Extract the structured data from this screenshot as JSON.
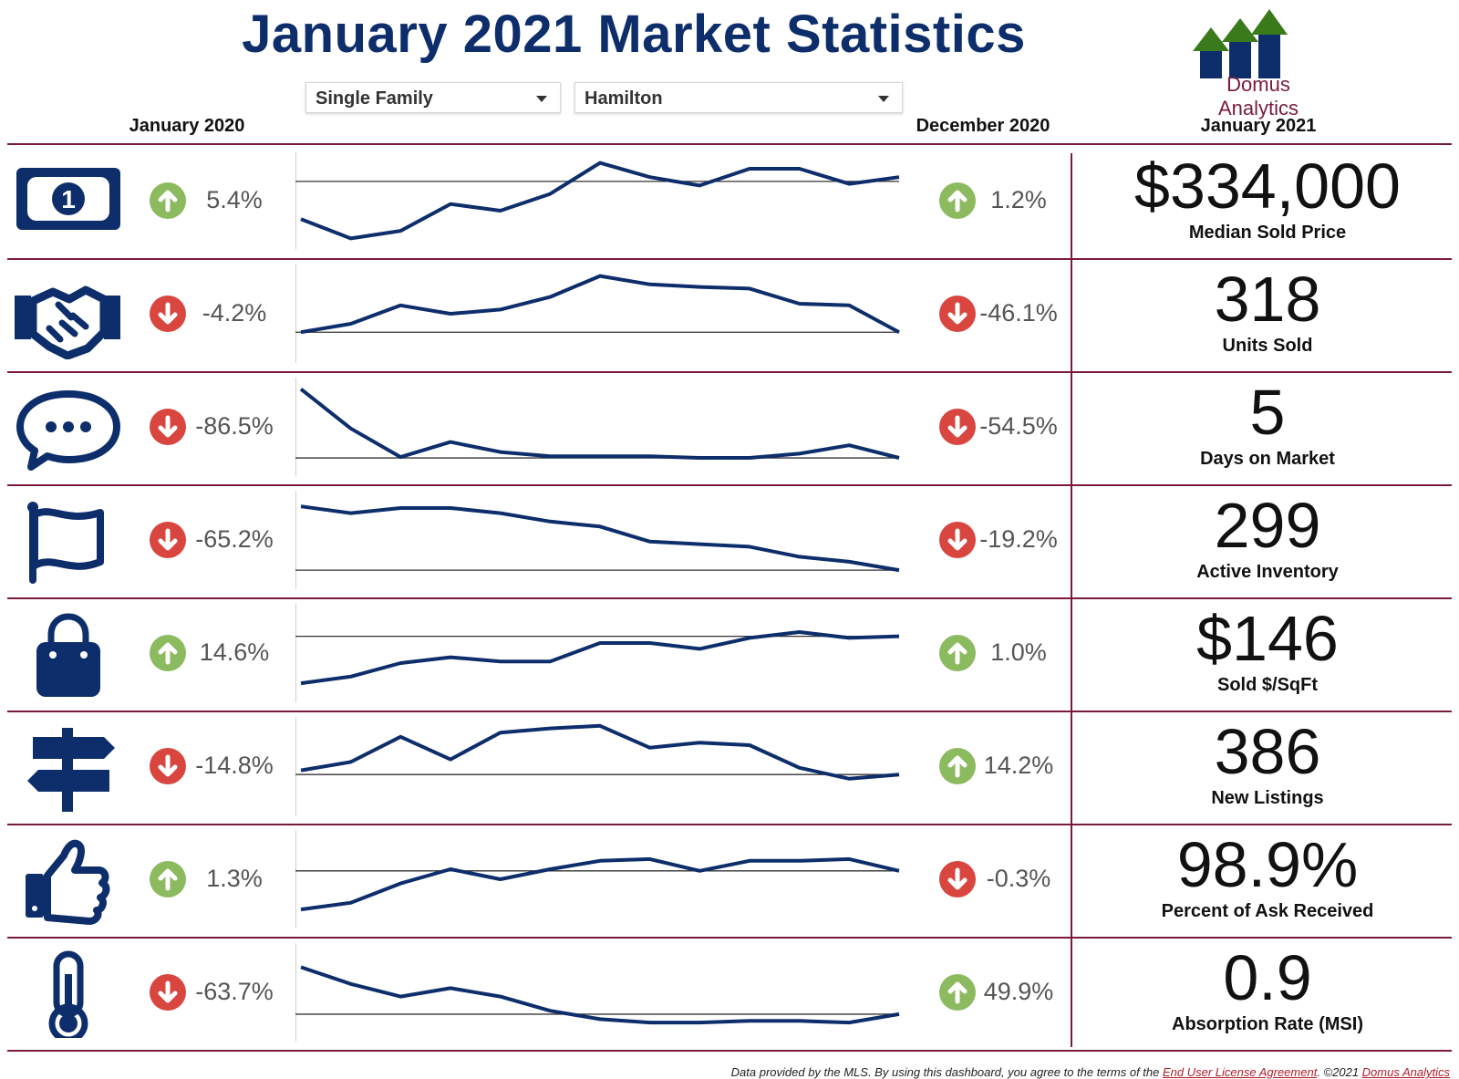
{
  "title": "January 2021 Market Statistics",
  "logo_text": "Domus Analytics",
  "filters": {
    "property_type": "Single Family",
    "region": "Hamilton"
  },
  "headers": {
    "left": "January 2020",
    "middle": "December 2020",
    "right": "January 2021"
  },
  "colors": {
    "navy": "#0d2e6b",
    "up": "#8cba5e",
    "down": "#d9463f",
    "divider": "#7a1a3a"
  },
  "rows": [
    {
      "icon": "dollar-bill-icon",
      "yoy": "5.4%",
      "yoy_dir": "up",
      "mom": "1.2%",
      "mom_dir": "up",
      "value": "$334,000",
      "label": "Median Sold Price",
      "spark": [
        0.72,
        0.95,
        0.86,
        0.54,
        0.62,
        0.42,
        0.05,
        0.22,
        0.32,
        0.12,
        0.12,
        0.3,
        0.22
      ],
      "ref": 0.27
    },
    {
      "icon": "handshake-icon",
      "yoy": "-4.2%",
      "yoy_dir": "down",
      "mom": "-46.1%",
      "mom_dir": "down",
      "value": "318",
      "label": "Units Sold",
      "spark": [
        0.72,
        0.62,
        0.4,
        0.5,
        0.45,
        0.3,
        0.05,
        0.15,
        0.18,
        0.2,
        0.38,
        0.4,
        0.72
      ],
      "ref": 0.72
    },
    {
      "icon": "chat-bubble-icon",
      "yoy": "-86.5%",
      "yoy_dir": "down",
      "mom": "-54.5%",
      "mom_dir": "down",
      "value": "5",
      "label": "Days on Market",
      "spark": [
        0.05,
        0.52,
        0.86,
        0.68,
        0.8,
        0.85,
        0.85,
        0.85,
        0.87,
        0.87,
        0.82,
        0.72,
        0.87
      ],
      "ref": 0.87
    },
    {
      "icon": "flag-icon",
      "yoy": "-65.2%",
      "yoy_dir": "down",
      "mom": "-19.2%",
      "mom_dir": "down",
      "value": "299",
      "label": "Active Inventory",
      "spark": [
        0.1,
        0.18,
        0.12,
        0.12,
        0.18,
        0.28,
        0.34,
        0.52,
        0.55,
        0.58,
        0.7,
        0.76,
        0.86
      ],
      "ref": 0.86
    },
    {
      "icon": "shopping-bag-icon",
      "yoy": "14.6%",
      "yoy_dir": "up",
      "mom": "1.0%",
      "mom_dir": "up",
      "value": "$146",
      "label": "Sold $/SqFt",
      "spark": [
        0.86,
        0.78,
        0.62,
        0.55,
        0.6,
        0.6,
        0.38,
        0.38,
        0.45,
        0.32,
        0.25,
        0.32,
        0.3
      ],
      "ref": 0.3
    },
    {
      "icon": "signpost-icon",
      "yoy": "-14.8%",
      "yoy_dir": "down",
      "mom": "14.2%",
      "mom_dir": "up",
      "value": "386",
      "label": "New Listings",
      "spark": [
        0.55,
        0.45,
        0.15,
        0.42,
        0.1,
        0.05,
        0.02,
        0.28,
        0.22,
        0.25,
        0.52,
        0.65,
        0.6
      ],
      "ref": 0.6
    },
    {
      "icon": "thumbs-up-icon",
      "yoy": "1.3%",
      "yoy_dir": "up",
      "mom": "-0.3%",
      "mom_dir": "down",
      "value": "98.9%",
      "label": "Percent of Ask Received",
      "spark": [
        0.86,
        0.78,
        0.55,
        0.38,
        0.5,
        0.38,
        0.28,
        0.26,
        0.4,
        0.28,
        0.28,
        0.26,
        0.4
      ],
      "ref": 0.4
    },
    {
      "icon": "thermometer-icon",
      "yoy": "-63.7%",
      "yoy_dir": "down",
      "mom": "49.9%",
      "mom_dir": "up",
      "value": "0.9",
      "label": "Absorption Rate (MSI)",
      "spark": [
        0.2,
        0.4,
        0.55,
        0.45,
        0.55,
        0.72,
        0.82,
        0.86,
        0.86,
        0.84,
        0.84,
        0.86,
        0.76
      ],
      "ref": 0.76
    }
  ],
  "footer": {
    "text": "Data provided by the MLS.  By using this dashboard, you agree to the terms of the ",
    "link1": "End User License Agreement",
    "sep": ".  ©2021 ",
    "link2": "Domus Analytics"
  }
}
